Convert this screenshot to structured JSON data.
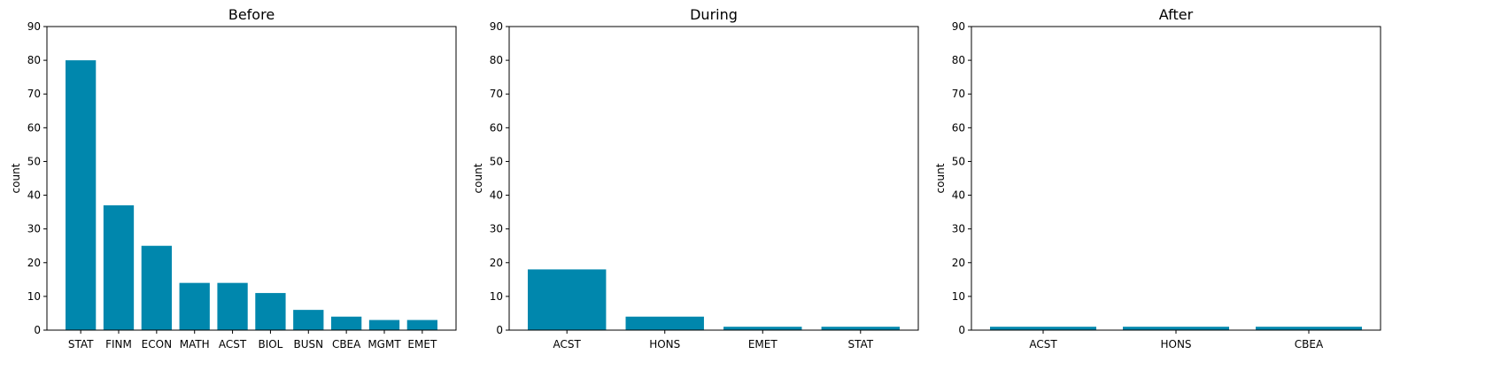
{
  "bar_color": "#0087ad",
  "chart_data": [
    {
      "type": "bar",
      "title": "Before",
      "xlabel": "",
      "ylabel": "count",
      "ylim": [
        0,
        90
      ],
      "yticks": [
        0,
        10,
        20,
        30,
        40,
        50,
        60,
        70,
        80,
        90
      ],
      "grid": false,
      "categories": [
        "STAT",
        "FINM",
        "ECON",
        "MATH",
        "ACST",
        "BIOL",
        "BUSN",
        "CBEA",
        "MGMT",
        "EMET"
      ],
      "values": [
        80,
        37,
        25,
        14,
        14,
        11,
        6,
        4,
        3,
        3
      ]
    },
    {
      "type": "bar",
      "title": "During",
      "xlabel": "",
      "ylabel": "count",
      "ylim": [
        0,
        90
      ],
      "yticks": [
        0,
        10,
        20,
        30,
        40,
        50,
        60,
        70,
        80,
        90
      ],
      "grid": false,
      "categories": [
        "ACST",
        "HONS",
        "EMET",
        "STAT"
      ],
      "values": [
        18,
        4,
        1,
        1
      ]
    },
    {
      "type": "bar",
      "title": "After",
      "xlabel": "",
      "ylabel": "count",
      "ylim": [
        0,
        90
      ],
      "yticks": [
        0,
        10,
        20,
        30,
        40,
        50,
        60,
        70,
        80,
        90
      ],
      "grid": false,
      "categories": [
        "ACST",
        "HONS",
        "CBEA"
      ],
      "values": [
        1,
        1,
        1
      ]
    }
  ]
}
